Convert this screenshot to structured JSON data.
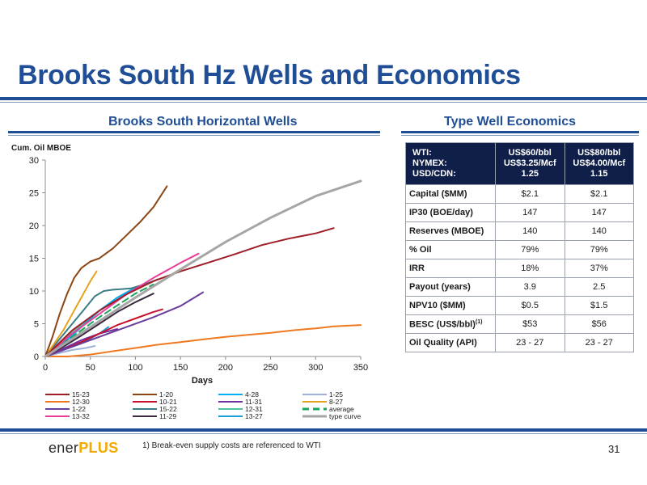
{
  "slide": {
    "title": "Brooks South Hz Wells and Economics",
    "page_number": "31",
    "footnote": "1)   Break-even supply costs are referenced to WTI",
    "logo": {
      "part1": "ener",
      "part2": "PLUS"
    }
  },
  "chart_data": {
    "type": "line",
    "title": "Brooks South Horizontal Wells",
    "xlabel": "Days",
    "ylabel": "Cum. Oil MBOE",
    "xlim": [
      0,
      350
    ],
    "ylim": [
      0,
      30
    ],
    "xticks": [
      0,
      50,
      100,
      150,
      200,
      250,
      300,
      350
    ],
    "yticks": [
      0,
      5,
      10,
      15,
      20,
      25,
      30
    ],
    "grid": false,
    "legend_position": "bottom",
    "series": [
      {
        "name": "15-23",
        "color": "#9e1d26",
        "x": [
          0,
          30,
          60,
          90,
          120,
          150,
          180,
          210,
          240,
          270,
          300,
          320
        ],
        "y": [
          0,
          4,
          7,
          9.5,
          11.5,
          13,
          14.3,
          15.6,
          17,
          18,
          18.8,
          19.6
        ]
      },
      {
        "name": "1-20",
        "color": "#8b4513",
        "x": [
          0,
          8,
          16,
          24,
          32,
          40,
          50,
          60,
          75,
          90,
          105,
          120,
          135
        ],
        "y": [
          0,
          3,
          6.5,
          9.5,
          12,
          13.5,
          14.5,
          15,
          16.5,
          18.5,
          20.5,
          22.8,
          26
        ]
      },
      {
        "name": "4-28",
        "color": "#00b0f0",
        "x": [
          0,
          20,
          40,
          60,
          80,
          100,
          120
        ],
        "y": [
          0,
          2,
          4.5,
          7,
          9,
          10.5,
          11.5
        ]
      },
      {
        "name": "1-25",
        "color": "#9fb0d6",
        "x": [
          0,
          15,
          30,
          45,
          55
        ],
        "y": [
          0,
          0.5,
          1,
          1.3,
          1.6
        ]
      },
      {
        "name": "12-30",
        "color": "#f07820",
        "x": [
          0,
          25,
          50,
          75,
          100,
          125,
          150,
          175,
          200,
          225,
          250,
          275,
          300,
          320,
          350
        ],
        "y": [
          0,
          0,
          0.3,
          0.8,
          1.3,
          1.8,
          2.2,
          2.6,
          3.0,
          3.3,
          3.6,
          4.0,
          4.3,
          4.6,
          4.8
        ]
      },
      {
        "name": "10-21",
        "color": "#c8102e",
        "x": [
          0,
          20,
          40,
          60,
          80,
          100,
          120,
          130
        ],
        "y": [
          0,
          1,
          2.2,
          3.5,
          4.8,
          5.8,
          6.8,
          7.2
        ]
      },
      {
        "name": "11-31",
        "color": "#7030a0",
        "x": [
          0,
          20,
          40,
          60,
          80
        ],
        "y": [
          0,
          1.2,
          2.5,
          3.5,
          4.2
        ]
      },
      {
        "name": "8-27",
        "color": "#e5a31d",
        "x": [
          0,
          10,
          20,
          30,
          40,
          50,
          57
        ],
        "y": [
          0,
          2,
          4,
          6.5,
          9,
          11.5,
          13
        ]
      },
      {
        "name": "1-22",
        "color": "#6a3d9a",
        "x": [
          0,
          30,
          60,
          90,
          120,
          150,
          175
        ],
        "y": [
          0,
          1.5,
          3,
          4.5,
          6,
          7.7,
          9.8
        ]
      },
      {
        "name": "15-22",
        "color": "#3a7d86",
        "x": [
          0,
          15,
          30,
          45,
          55,
          65,
          75,
          85,
          95,
          105,
          115,
          125
        ],
        "y": [
          0,
          2.5,
          5,
          7.5,
          9.2,
          10,
          10.2,
          10.3,
          10.4,
          10.8,
          11.2,
          11.8
        ]
      },
      {
        "name": "12-31",
        "color": "#4fc3a1",
        "x": [
          0,
          20,
          40,
          60,
          80,
          100
        ],
        "y": [
          0,
          2.5,
          4.8,
          7,
          9,
          10.5
        ]
      },
      {
        "name": "average",
        "color": "#1aa35a",
        "dashed": true,
        "x": [
          0,
          20,
          40,
          60,
          80,
          100,
          120
        ],
        "y": [
          0,
          2,
          4,
          6,
          7.8,
          9.6,
          11
        ]
      },
      {
        "name": "13-32",
        "color": "#e83e9a",
        "x": [
          0,
          30,
          60,
          90,
          120,
          150,
          170
        ],
        "y": [
          0,
          3.5,
          6.5,
          9.5,
          12,
          14.3,
          15.7
        ]
      },
      {
        "name": "11-29",
        "color": "#3b2a3f",
        "x": [
          0,
          20,
          40,
          60,
          80,
          100,
          120
        ],
        "y": [
          0,
          1.5,
          3.2,
          5,
          6.8,
          8.3,
          9.6
        ]
      },
      {
        "name": "13-27",
        "color": "#1a9fd6",
        "x": [
          0,
          20,
          40,
          60,
          70
        ],
        "y": [
          0,
          1,
          2,
          3.5,
          4.5
        ]
      },
      {
        "name": "type curve",
        "color": "#a6a6a6",
        "x": [
          0,
          50,
          100,
          150,
          200,
          250,
          300,
          350
        ],
        "y": [
          0,
          4.5,
          9,
          13.3,
          17.5,
          21.2,
          24.5,
          26.8
        ]
      }
    ]
  },
  "economics": {
    "title": "Type Well Economics",
    "header": {
      "label_lines": [
        "WTI:",
        "NYMEX:",
        "USD/CDN:"
      ],
      "col1_lines": [
        "US$60/bbl",
        "US$3.25/Mcf",
        "1.25"
      ],
      "col2_lines": [
        "US$80/bbl",
        "US$4.00/Mcf",
        "1.15"
      ]
    },
    "rows": [
      {
        "label": "Capital ($MM)",
        "v1": "$2.1",
        "v2": "$2.1"
      },
      {
        "label": "IP30 (BOE/day)",
        "v1": "147",
        "v2": "147"
      },
      {
        "label": "Reserves (MBOE)",
        "v1": "140",
        "v2": "140"
      },
      {
        "label": "% Oil",
        "v1": "79%",
        "v2": "79%"
      },
      {
        "label": "IRR",
        "v1": "18%",
        "v2": "37%"
      },
      {
        "label": "Payout (years)",
        "v1": "3.9",
        "v2": "2.5"
      },
      {
        "label": "NPV10 ($MM)",
        "v1": "$0.5",
        "v2": "$1.5"
      },
      {
        "label": "BESC (US$/bbl)",
        "sup": "(1)",
        "v1": "$53",
        "v2": "$56"
      },
      {
        "label": "Oil Quality (API)",
        "v1": "23 - 27",
        "v2": "23 - 27"
      }
    ]
  }
}
